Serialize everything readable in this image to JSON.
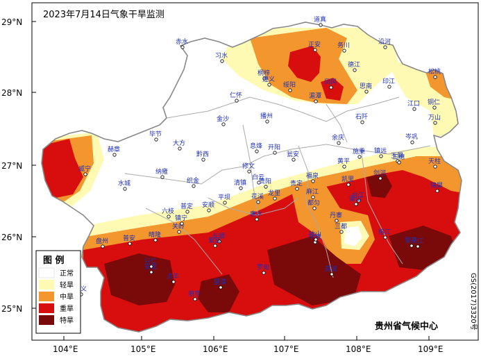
{
  "map": {
    "title": "2023年7月14日气象干旱监测",
    "source": "贵州省气候中心",
    "approval_number": "GS(2017)3320号",
    "lat_labels": [
      "29°N",
      "28°N",
      "27°N",
      "26°N",
      "25°N"
    ],
    "lon_labels": [
      "104°E",
      "105°E",
      "106°E",
      "107°E",
      "108°E",
      "109°E"
    ],
    "legend": {
      "title": "图 例",
      "items": [
        {
          "label": "正常",
          "color": "#ffffff"
        },
        {
          "label": "轻旱",
          "color": "#fefab4"
        },
        {
          "label": "中旱",
          "color": "#f4962e"
        },
        {
          "label": "重旱",
          "color": "#d80e0e"
        },
        {
          "label": "特旱",
          "color": "#7a0a0a"
        }
      ]
    },
    "stations": [
      "道真",
      "正安",
      "务川",
      "沿河",
      "赤水",
      "习水",
      "桐梓",
      "德江",
      "印江",
      "松桃",
      "仁怀",
      "绥阳",
      "湄潭",
      "凤冈",
      "思南",
      "江口",
      "铜仁",
      "遵义",
      "金沙",
      "播州",
      "石阡",
      "万山",
      "毕节",
      "大方",
      "黔西",
      "息烽",
      "开阳",
      "瓮安",
      "余庆",
      "岑巩",
      "玉屏",
      "威宁",
      "赫章",
      "纳雍",
      "织金",
      "修文",
      "白云",
      "贵阳",
      "福泉",
      "黄平",
      "施秉",
      "镇远",
      "三穗",
      "天柱",
      "水城",
      "六枝",
      "普定",
      "平坝",
      "清镇",
      "花溪",
      "龙里",
      "贵定",
      "麻江",
      "凯里",
      "台江",
      "剑河",
      "锦屏",
      "盘州",
      "晴隆",
      "关岭",
      "镇宁",
      "安顺",
      "长顺",
      "惠水",
      "都匀",
      "丹寨",
      "雷山",
      "榕江",
      "黎平",
      "普安",
      "兴仁",
      "紫云",
      "罗甸",
      "平塘",
      "独山",
      "三都",
      "从江",
      "荔波",
      "兴义",
      "安龙",
      "贞丰",
      "册亨",
      "望谟"
    ]
  }
}
